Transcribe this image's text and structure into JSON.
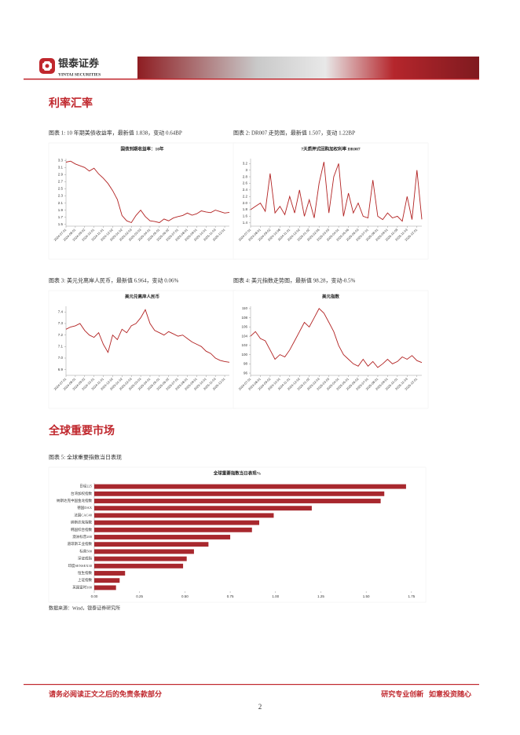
{
  "header": {
    "brand": "银泰证券",
    "brand_en": "YINTAI SECURITIES"
  },
  "sections": [
    "利率汇率",
    "全球重要市场"
  ],
  "chart_data": [
    {
      "type": "line",
      "caption": "图表 1: 10 年期美债收益率，最新值 1.838，变动 0.64BP",
      "title": "国债到期收益率：10年",
      "color": "#b22222",
      "categories": [
        "2024-07-01",
        null,
        "2024-08-01",
        null,
        "2024-09-02",
        null,
        "2024-10-01",
        null,
        "2024-11-01",
        null,
        "2024-12-02",
        null,
        "2025-01-02",
        null,
        "2025-02-03",
        null,
        "2025-03-03",
        null,
        "2025-04-01",
        null,
        "2025-05-01",
        null,
        "2025-06-02",
        null,
        "2025-07-01",
        null,
        "2025-08-01",
        null,
        "2025-09-01",
        null,
        "2025-10-01",
        null,
        "2025-11-03",
        null,
        "2025-12-01",
        null
      ],
      "values": [
        3.25,
        3.28,
        3.2,
        3.15,
        3.1,
        3.0,
        3.08,
        2.92,
        2.8,
        2.65,
        2.45,
        2.2,
        1.75,
        1.6,
        1.55,
        1.75,
        1.9,
        1.72,
        1.6,
        1.58,
        1.55,
        1.65,
        1.6,
        1.68,
        1.72,
        1.75,
        1.82,
        1.76,
        1.8,
        1.88,
        1.85,
        1.83,
        1.9,
        1.86,
        1.82,
        1.838
      ],
      "ylim": [
        1.45,
        3.35
      ],
      "yticks": [
        1.5,
        1.7,
        1.9,
        2.1,
        2.3,
        2.5,
        2.7,
        2.9,
        3.1,
        3.3
      ]
    },
    {
      "type": "line",
      "caption": "图表 2: DR007 走势图，最新值 1.507，变动 1.22BP",
      "title": "7天质押式回购加权利率 DR007",
      "color": "#b22222",
      "categories": [
        "2024-07-01",
        null,
        "2024-08-01",
        null,
        "2024-09-02",
        null,
        "2024-10-08",
        null,
        "2024-11-01",
        null,
        "2024-12-02",
        null,
        "2025-01-02",
        null,
        "2025-02-05",
        null,
        "2025-03-03",
        null,
        "2025-04-01",
        null,
        "2025-05-06",
        null,
        "2025-06-03",
        null,
        "2025-07-01",
        null,
        "2025-08-01",
        null,
        "2025-09-01",
        null,
        "2025-10-09",
        null,
        "2025-11-03",
        null,
        "2025-12-01",
        null
      ],
      "values": [
        1.8,
        1.9,
        2.0,
        1.75,
        2.9,
        1.7,
        1.9,
        1.65,
        2.2,
        1.7,
        2.4,
        1.6,
        2.1,
        1.55,
        2.6,
        3.25,
        1.7,
        2.8,
        3.2,
        1.6,
        2.3,
        1.7,
        2.0,
        1.6,
        1.55,
        2.7,
        1.6,
        1.5,
        1.7,
        1.55,
        1.6,
        1.45,
        2.2,
        1.5,
        3.0,
        1.507
      ],
      "ylim": [
        1.3,
        3.35
      ],
      "yticks": [
        1.4,
        1.6,
        1.8,
        {
          "value": 2,
          "label": "2.0"
        },
        2.2,
        2.4,
        2.6,
        2.8,
        3.0,
        3.2
      ]
    },
    {
      "type": "line",
      "caption": "图表 3: 美元兑离岸人民币，最新值 6.964，变动 0.06%",
      "title": "美元兑离岸人民币",
      "color": "#b22222",
      "categories": [
        "2024-07-01",
        null,
        "2024-08-01",
        null,
        "2024-09-02",
        null,
        "2024-10-01",
        null,
        "2024-11-01",
        null,
        "2024-12-02",
        null,
        "2025-01-02",
        null,
        "2025-02-03",
        null,
        "2025-03-03",
        null,
        "2025-04-01",
        null,
        "2025-05-01",
        null,
        "2025-06-02",
        null,
        "2025-07-01",
        null,
        "2025-08-01",
        null,
        "2025-09-01",
        null,
        "2025-10-01",
        null,
        "2025-11-03",
        null,
        "2025-12-01",
        null
      ],
      "values": [
        7.25,
        7.27,
        7.28,
        7.3,
        7.24,
        7.2,
        7.18,
        7.22,
        7.12,
        7.05,
        7.2,
        7.16,
        7.25,
        7.22,
        7.28,
        7.3,
        7.35,
        7.42,
        7.3,
        7.24,
        7.22,
        7.2,
        7.23,
        7.21,
        7.19,
        7.2,
        7.17,
        7.14,
        7.12,
        7.1,
        7.06,
        7.04,
        7.0,
        6.98,
        6.97,
        6.964
      ],
      "ylim": [
        6.85,
        7.45
      ],
      "yticks": [
        6.9,
        {
          "value": 7,
          "label": "7.0"
        },
        7.1,
        7.2,
        7.3,
        7.4
      ]
    },
    {
      "type": "line",
      "caption": "图表 4: 美元指数走势图，最新值 98.28，变动-0.5%",
      "title": "美元指数",
      "color": "#b22222",
      "categories": [
        "2024-07-01",
        null,
        "2024-08-01",
        null,
        "2024-09-02",
        null,
        "2024-10-01",
        null,
        "2024-11-01",
        null,
        "2024-12-02",
        null,
        "2025-01-02",
        null,
        "2025-02-03",
        null,
        "2025-03-03",
        null,
        "2025-04-01",
        null,
        "2025-05-01",
        null,
        "2025-06-02",
        null,
        "2025-07-01",
        null,
        "2025-08-01",
        null,
        "2025-09-01",
        null,
        "2025-10-01",
        null,
        "2025-11-03",
        null,
        "2025-12-01",
        null
      ],
      "values": [
        104,
        105,
        103.5,
        103,
        101,
        99,
        100,
        99.5,
        101,
        103,
        105,
        107,
        106,
        108,
        110,
        109,
        107,
        105,
        102,
        100,
        99,
        98,
        97.5,
        99,
        97.5,
        98.5,
        97.2,
        98,
        99,
        98,
        98.5,
        99.5,
        99,
        99.8,
        98.7,
        98.28
      ],
      "ylim": [
        95.5,
        110.5
      ],
      "yticks": [
        96,
        98,
        100,
        102,
        104,
        106,
        108,
        110
      ]
    },
    {
      "type": "hbar",
      "caption": "图表 5: 全球重要指数当日表现",
      "title": "全球重要指数当日表现%",
      "color": "#a8282e",
      "categories": [
        "日经225",
        "台湾加权指数",
        "纳斯达克中国金龙指数",
        "德国DAX",
        "法国CAC40",
        "纳斯达克指数",
        "韩国综合指数",
        "澳洲标普200",
        "道琼斯工业指数",
        "标普500",
        "深证成指",
        "印度SENSEX30",
        "恒生指数",
        "上证指数",
        "英国富时100"
      ],
      "values": [
        1.72,
        1.6,
        1.58,
        1.2,
        0.99,
        0.91,
        0.87,
        0.75,
        0.63,
        0.55,
        0.51,
        0.49,
        0.17,
        0.14,
        0.12
      ],
      "xlim": [
        0,
        1.82
      ],
      "xticks": [
        {
          "value": 0,
          "label": "0.00"
        },
        0.25,
        {
          "value": 0.5,
          "label": "0.50"
        },
        0.75,
        {
          "value": 1,
          "label": "1.00"
        },
        1.25,
        {
          "value": 1.5,
          "label": "1.50"
        },
        1.75
      ]
    }
  ],
  "source": "数据来源：Wind，银泰证券研究所",
  "footer": {
    "disclaimer": "请务必阅读正文之后的免责条款部分",
    "slogan": "研究专业创新   如意投资随心",
    "page": 2
  }
}
